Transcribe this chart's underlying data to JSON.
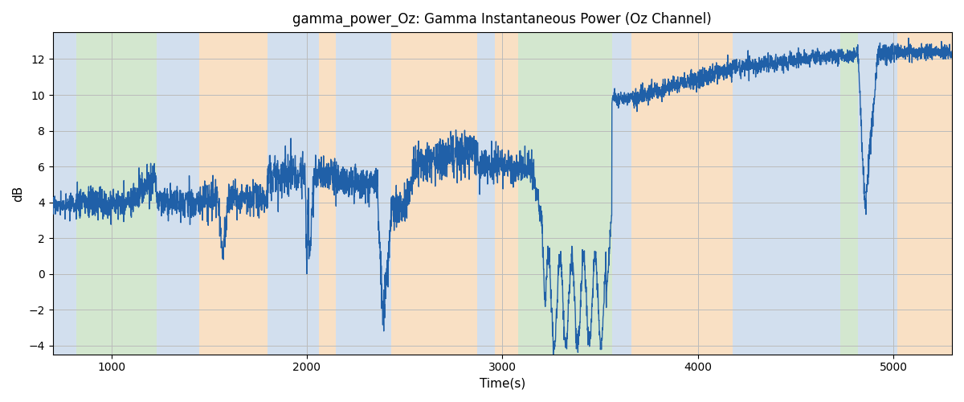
{
  "title": "gamma_power_Oz: Gamma Instantaneous Power (Oz Channel)",
  "xlabel": "Time(s)",
  "ylabel": "dB",
  "xlim": [
    700,
    5300
  ],
  "ylim": [
    -4.5,
    13.5
  ],
  "yticks": [
    -4,
    -2,
    0,
    2,
    4,
    6,
    8,
    10,
    12
  ],
  "xticks": [
    1000,
    2000,
    3000,
    4000,
    5000
  ],
  "line_color": "#2060a8",
  "line_width": 1.0,
  "grid_color": "#bbbbbb",
  "bg_regions": [
    {
      "xstart": 700,
      "xend": 820,
      "color": "#adc6e0",
      "alpha": 0.55
    },
    {
      "xstart": 820,
      "xend": 1230,
      "color": "#b0d4a8",
      "alpha": 0.55
    },
    {
      "xstart": 1230,
      "xend": 1450,
      "color": "#adc6e0",
      "alpha": 0.55
    },
    {
      "xstart": 1450,
      "xend": 1800,
      "color": "#f5c894",
      "alpha": 0.55
    },
    {
      "xstart": 1800,
      "xend": 2060,
      "color": "#adc6e0",
      "alpha": 0.55
    },
    {
      "xstart": 2060,
      "xend": 2150,
      "color": "#f5c894",
      "alpha": 0.55
    },
    {
      "xstart": 2150,
      "xend": 2430,
      "color": "#adc6e0",
      "alpha": 0.55
    },
    {
      "xstart": 2430,
      "xend": 2870,
      "color": "#f5c894",
      "alpha": 0.55
    },
    {
      "xstart": 2870,
      "xend": 2960,
      "color": "#adc6e0",
      "alpha": 0.55
    },
    {
      "xstart": 2960,
      "xend": 3080,
      "color": "#f5c894",
      "alpha": 0.55
    },
    {
      "xstart": 3080,
      "xend": 3560,
      "color": "#b0d4a8",
      "alpha": 0.55
    },
    {
      "xstart": 3560,
      "xend": 3660,
      "color": "#adc6e0",
      "alpha": 0.55
    },
    {
      "xstart": 3660,
      "xend": 4180,
      "color": "#f5c894",
      "alpha": 0.55
    },
    {
      "xstart": 4180,
      "xend": 4730,
      "color": "#adc6e0",
      "alpha": 0.55
    },
    {
      "xstart": 4730,
      "xend": 4820,
      "color": "#b0d4a8",
      "alpha": 0.55
    },
    {
      "xstart": 4820,
      "xend": 5020,
      "color": "#adc6e0",
      "alpha": 0.55
    },
    {
      "xstart": 5020,
      "xend": 5300,
      "color": "#f5c894",
      "alpha": 0.55
    }
  ],
  "seed": 17,
  "n_points": 4600
}
